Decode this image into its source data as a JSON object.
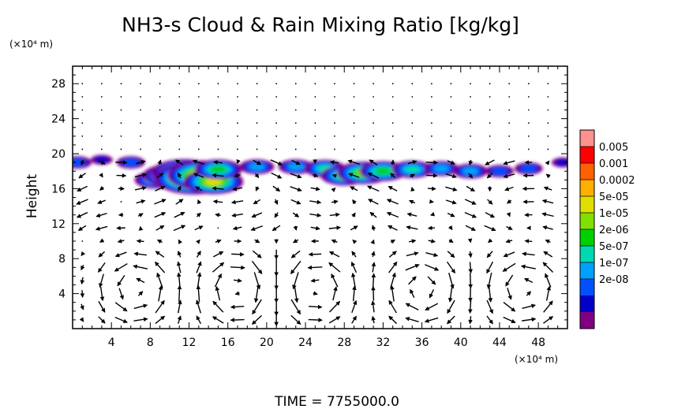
{
  "chart_data": {
    "type": "heatmap",
    "title": "NH3-s Cloud & Rain Mixing Ratio [kg/kg]",
    "xlabel": "",
    "ylabel": "Height",
    "x_unit": "(×10⁴ m)",
    "y_unit": "(×10⁴ m)",
    "xlim": [
      0,
      51
    ],
    "ylim": [
      0,
      30
    ],
    "x_ticks": [
      4,
      8,
      12,
      16,
      20,
      24,
      28,
      32,
      36,
      40,
      44,
      48
    ],
    "y_ticks": [
      4,
      8,
      12,
      16,
      20,
      24,
      28
    ],
    "colorbar": {
      "labels": [
        "0.005",
        "0.001",
        "0.0002",
        "5e-05",
        "1e-05",
        "2e-06",
        "5e-07",
        "1e-07",
        "2e-08"
      ],
      "colors": [
        "#800080",
        "#0000c8",
        "#0050ff",
        "#00a0ff",
        "#00d8b0",
        "#00d000",
        "#80e000",
        "#e0e000",
        "#ffb000",
        "#ff6000",
        "#ff0000",
        "#ff9090"
      ]
    },
    "cloud_layer": [
      {
        "x": 0.5,
        "y": 19.0,
        "level": 2
      },
      {
        "x": 3,
        "y": 19.3,
        "level": 1
      },
      {
        "x": 6,
        "y": 19.0,
        "level": 2
      },
      {
        "x": 8.5,
        "y": 17.0,
        "level": 4
      },
      {
        "x": 10,
        "y": 17.5,
        "level": 6
      },
      {
        "x": 11.5,
        "y": 17.8,
        "level": 8
      },
      {
        "x": 12.5,
        "y": 17.2,
        "level": 10
      },
      {
        "x": 13.5,
        "y": 17.5,
        "level": 9
      },
      {
        "x": 14.5,
        "y": 16.8,
        "level": 7
      },
      {
        "x": 15,
        "y": 18.2,
        "level": 5
      },
      {
        "x": 19,
        "y": 18.5,
        "level": 3
      },
      {
        "x": 23,
        "y": 18.5,
        "level": 3
      },
      {
        "x": 26,
        "y": 18.3,
        "level": 4
      },
      {
        "x": 28,
        "y": 17.5,
        "level": 5
      },
      {
        "x": 30,
        "y": 17.8,
        "level": 6
      },
      {
        "x": 32,
        "y": 18.0,
        "level": 5
      },
      {
        "x": 35,
        "y": 18.2,
        "level": 4
      },
      {
        "x": 38,
        "y": 18.3,
        "level": 3
      },
      {
        "x": 41,
        "y": 18.0,
        "level": 3
      },
      {
        "x": 44,
        "y": 18.0,
        "level": 2
      },
      {
        "x": 47,
        "y": 18.3,
        "level": 2
      },
      {
        "x": 50.5,
        "y": 19.0,
        "level": 1
      }
    ],
    "wind_vectors": "velocity arrows; strong circulation cells near x≈4–10, 14–20, 22–28, 44–50 below 10",
    "annotation": "TIME = 7755000.0"
  }
}
